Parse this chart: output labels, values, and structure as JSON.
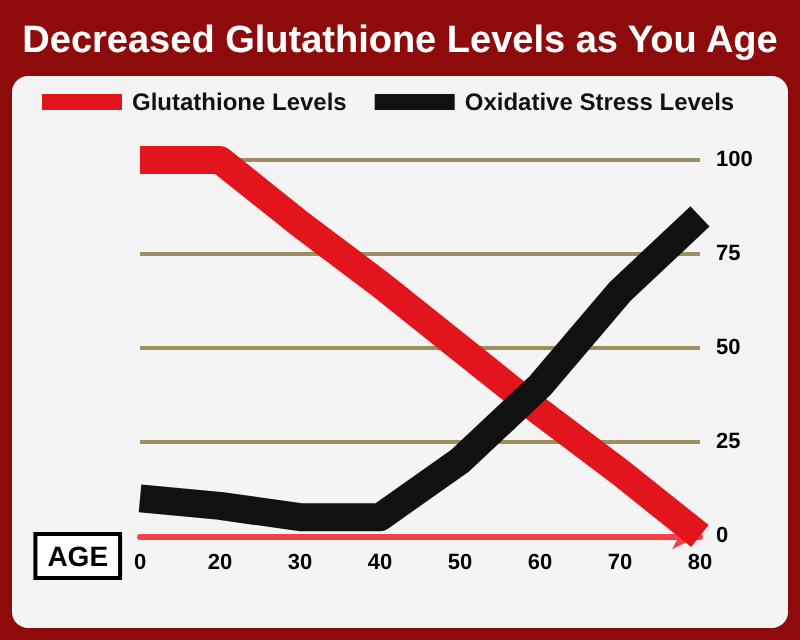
{
  "chart_data": {
    "type": "line",
    "title": "Decreased Glutathione Levels as You Age",
    "xlabel": "AGE",
    "categories": [
      "0",
      "20",
      "30",
      "40",
      "50",
      "60",
      "70",
      "80"
    ],
    "series": [
      {
        "name": "Glutathione Levels",
        "color": "#e3151c",
        "values": [
          100,
          100,
          83,
          67,
          50,
          33,
          17,
          0
        ]
      },
      {
        "name": "Oxidative Stress Levels",
        "color": "#111111",
        "values": [
          10,
          8,
          5,
          5,
          20,
          40,
          65,
          85
        ]
      }
    ],
    "ylim": [
      0,
      100
    ],
    "yticks": [
      0,
      25,
      50,
      75,
      100
    ],
    "grid": "y",
    "legend": "top left",
    "marker": "none",
    "line_style": "solid"
  }
}
